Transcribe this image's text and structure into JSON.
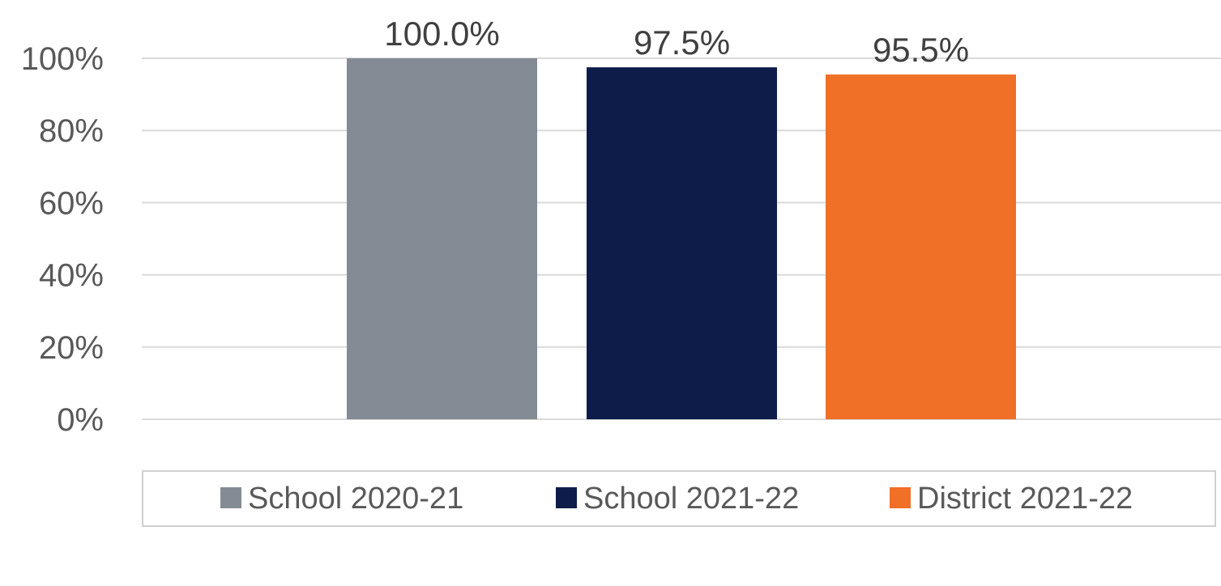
{
  "chart_data": {
    "type": "bar",
    "title": "",
    "xlabel": "",
    "ylabel": "",
    "ylim": [
      0,
      100
    ],
    "yticks": [
      "0%",
      "20%",
      "40%",
      "60%",
      "80%",
      "100%"
    ],
    "ytick_values": [
      0,
      20,
      40,
      60,
      80,
      100
    ],
    "grid": true,
    "legend_position": "bottom",
    "series": [
      {
        "name": "School 2020-21",
        "value": 100.0,
        "label": "100.0%",
        "color": "#858b94"
      },
      {
        "name": "School 2021-22",
        "value": 97.5,
        "label": "97.5%",
        "color": "#0e1c4a"
      },
      {
        "name": "District 2021-22",
        "value": 95.5,
        "label": "95.5%",
        "color": "#f07027"
      }
    ]
  }
}
